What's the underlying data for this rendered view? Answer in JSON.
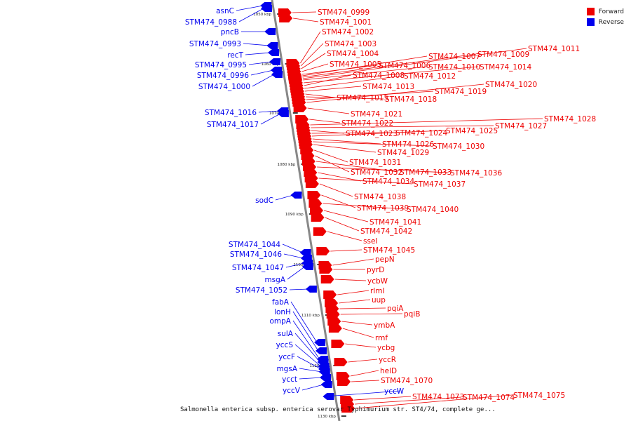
{
  "title": "Salmonella enterica subsp. enterica serovar Typhimurium str. ST4/74, complete ge...",
  "legend": [
    {
      "label": "Forward",
      "color": "#ee0000"
    },
    {
      "label": "Reverse",
      "color": "#0000ee"
    }
  ],
  "colors": {
    "forward": "#ee0000",
    "reverse": "#0000ee",
    "axis": "#777777"
  },
  "scale_labels": [
    "1050 kbp",
    "1060 kbp",
    "1070 kbp",
    "1080 kbp",
    "1090 kbp",
    "1100 kbp",
    "1110 kbp",
    "1120 kbp",
    "1130 kbp"
  ],
  "reverse_genes": [
    "asnC",
    "STM474_0988",
    "pncB",
    "STM474_0993",
    "recT",
    "STM474_0995",
    "STM474_0996",
    "STM474_1000",
    "STM474_1016",
    "STM474_1017",
    "sodC",
    "STM474_1044",
    "STM474_1046",
    "STM474_1047",
    "msgA",
    "STM474_1052",
    "fabA",
    "lonH",
    "ompA",
    "sulA",
    "yccS",
    "yccF",
    "mgsA",
    "ycct",
    "yccV",
    "yccW"
  ],
  "forward_genes": [
    "STM474_0999",
    "STM474_1001",
    "STM474_1002",
    "STM474_1003",
    "STM474_1004",
    "STM474_1005",
    "STM474_1006",
    "STM474_1007",
    "STM474_1009",
    "STM474_1011",
    "STM474_1010",
    "STM474_1014",
    "STM474_1008",
    "STM474_1012",
    "STM474_1013",
    "STM474_1015",
    "STM474_1018",
    "STM474_1019",
    "STM474_1020",
    "STM474_1021",
    "STM474_1022",
    "STM474_1028",
    "STM474_1027",
    "STM474_1023",
    "STM474_1024",
    "STM474_1025",
    "STM474_1026",
    "STM474_1030",
    "STM474_1029",
    "STM474_1031",
    "STM474_1032",
    "STM474_1033",
    "STM474_1036",
    "STM474_1034",
    "STM474_1037",
    "STM474_1038",
    "STM474_1039",
    "STM474_1040",
    "STM474_1041",
    "STM474_1042",
    "sseI",
    "STM474_1045",
    "pepN",
    "pyrD",
    "ycbW",
    "rlmI",
    "uup",
    "pqiA",
    "pqiB",
    "ymbA",
    "rmf",
    "ycbg",
    "yccR",
    "helD",
    "STM474_1070",
    "STM474_1073",
    "STM474_1074",
    "STM474_1075"
  ]
}
